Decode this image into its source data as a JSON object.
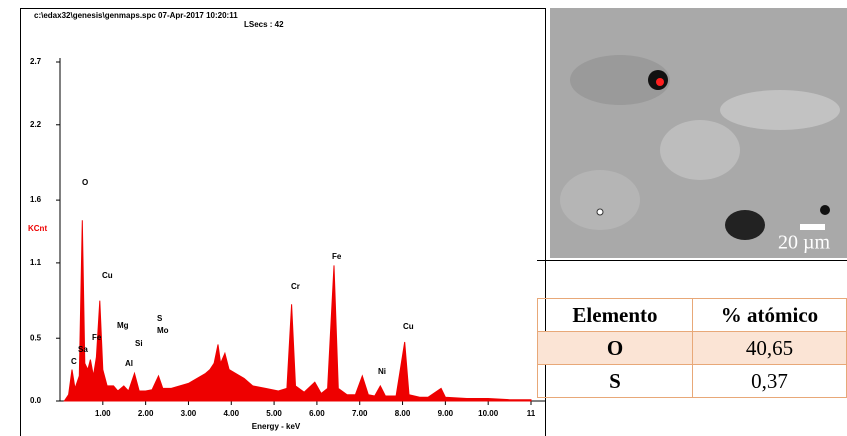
{
  "chart_data": {
    "type": "area",
    "header": "c:\\edax32\\genesis\\genmaps.spc  07-Apr-2017 10:20:11",
    "subheader": "LSecs : 42",
    "ylabel": "KCnt",
    "xlabel": "Energy - keV",
    "color": "#ee0000",
    "xlim": [
      0,
      11
    ],
    "ylim": [
      0,
      2.7
    ],
    "xticks": [
      {
        "value": 1,
        "label": "1.00"
      },
      {
        "value": 2,
        "label": "2.00"
      },
      {
        "value": 3,
        "label": "3.00"
      },
      {
        "value": 4,
        "label": "4.00"
      },
      {
        "value": 5,
        "label": "5.00"
      },
      {
        "value": 6,
        "label": "6.00"
      },
      {
        "value": 7,
        "label": "7.00"
      },
      {
        "value": 8,
        "label": "8.00"
      },
      {
        "value": 9,
        "label": "9.00"
      },
      {
        "value": 10,
        "label": "10.00"
      },
      11
    ],
    "yticks": [
      {
        "value": 0,
        "label": "0.0"
      },
      0.5,
      1.1,
      1.6,
      2.2,
      2.7
    ],
    "x": [
      0.1,
      0.2,
      0.28,
      0.35,
      0.45,
      0.52,
      0.58,
      0.65,
      0.71,
      0.78,
      0.85,
      0.93,
      1.0,
      1.1,
      1.25,
      1.35,
      1.49,
      1.6,
      1.74,
      1.85,
      2.0,
      2.15,
      2.3,
      2.4,
      2.6,
      2.8,
      3.0,
      3.2,
      3.4,
      3.5,
      3.6,
      3.69,
      3.75,
      3.85,
      3.95,
      4.1,
      4.3,
      4.5,
      4.8,
      5.1,
      5.3,
      5.41,
      5.5,
      5.7,
      5.95,
      6.1,
      6.25,
      6.4,
      6.5,
      6.7,
      6.9,
      7.06,
      7.2,
      7.35,
      7.48,
      7.6,
      7.85,
      8.05,
      8.15,
      8.4,
      8.6,
      8.9,
      9.0,
      9.5,
      10,
      10.5,
      11
    ],
    "values": [
      0.0,
      0.05,
      0.25,
      0.1,
      0.2,
      1.44,
      0.3,
      0.25,
      0.33,
      0.2,
      0.35,
      0.8,
      0.25,
      0.12,
      0.12,
      0.08,
      0.12,
      0.08,
      0.22,
      0.08,
      0.08,
      0.09,
      0.2,
      0.1,
      0.1,
      0.12,
      0.14,
      0.18,
      0.22,
      0.25,
      0.3,
      0.45,
      0.3,
      0.38,
      0.25,
      0.22,
      0.18,
      0.12,
      0.1,
      0.08,
      0.1,
      0.77,
      0.12,
      0.07,
      0.15,
      0.06,
      0.1,
      1.08,
      0.1,
      0.05,
      0.05,
      0.2,
      0.05,
      0.04,
      0.12,
      0.04,
      0.04,
      0.47,
      0.05,
      0.03,
      0.03,
      0.1,
      0.03,
      0.02,
      0.02,
      0.01,
      0.01
    ],
    "annotations": [
      "O",
      "Cu",
      "Fe",
      "C",
      "Sa",
      "Mg",
      "Al",
      "Si",
      "S",
      "Mo",
      "Cr",
      "Fe",
      "Cu",
      "Ni"
    ]
  },
  "image": {
    "scale_label": "20 µm"
  },
  "table": {
    "header": [
      "Elemento",
      "% atómico"
    ],
    "rows": [
      [
        "O",
        "40,65"
      ],
      [
        "S",
        "0,37"
      ]
    ]
  }
}
